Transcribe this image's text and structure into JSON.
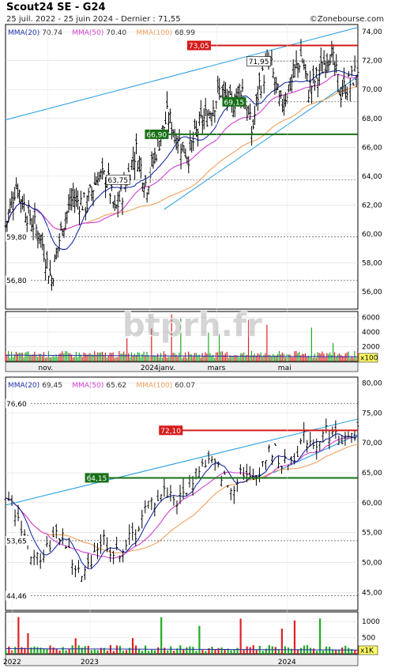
{
  "header": {
    "title": "Scout24 SE - G24",
    "subtitle": "25 juil. 2022 - 25 juin 2024 - Dernier : 71,55",
    "source": "©Zonebourse.com"
  },
  "watermark": "btprh.fr",
  "colors": {
    "mma20": "#1b2fa8",
    "mma50": "#d23fd2",
    "mma100": "#f0a05a",
    "trend": "#1e9be0",
    "resistance": "#d61b1b",
    "support": "#177017",
    "up_volume": "#22aa22",
    "down_volume": "#dd2222"
  },
  "chart_data": [
    {
      "id": "top",
      "type": "line",
      "description_period": "daily, last ~12 months",
      "legend": [
        {
          "label": "MMA(20)",
          "value": "70.74",
          "color": "#1b2fa8"
        },
        {
          "label": "MMA(50)",
          "value": "70.40",
          "color": "#d23fd2"
        },
        {
          "label": "MMA(100)",
          "value": "68.99",
          "color": "#f0a05a"
        }
      ],
      "ylim": [
        54.8,
        74.5
      ],
      "yticks": [
        "74,00",
        "72,00",
        "70,00",
        "68,00",
        "66,00",
        "64,00",
        "62,00",
        "60,00",
        "58,00",
        "56,00"
      ],
      "ytick_values": [
        74,
        72,
        70,
        68,
        66,
        64,
        62,
        60,
        58,
        56
      ],
      "xticks": [
        "nov.",
        "2024janv.",
        "mars",
        "mai"
      ],
      "xtick_positions": [
        0.12,
        0.41,
        0.6,
        0.8
      ],
      "levels": [
        {
          "label": "73,05",
          "value": 73.05,
          "kind": "resistance",
          "labelpos": 0.52
        },
        {
          "label": "71,95",
          "value": 71.95,
          "kind": "note",
          "labelpos": 0.69
        },
        {
          "label": "69,15",
          "value": 69.15,
          "kind": "support-label",
          "labelpos": 0.62
        },
        {
          "label": "66,90",
          "value": 66.9,
          "kind": "support",
          "labelpos": 0.4
        },
        {
          "label": "63,75",
          "value": 63.75,
          "kind": "note",
          "labelpos": 0.29
        },
        {
          "label": "59,80",
          "value": 59.8,
          "kind": "left",
          "labelpos": 0
        },
        {
          "label": "56,80",
          "value": 56.8,
          "kind": "left",
          "labelpos": 0
        }
      ],
      "close_points": [
        [
          0,
          60.5
        ],
        [
          0.03,
          63.5
        ],
        [
          0.06,
          61.5
        ],
        [
          0.1,
          59.8
        ],
        [
          0.13,
          56.8
        ],
        [
          0.16,
          60.5
        ],
        [
          0.19,
          62.5
        ],
        [
          0.23,
          62.0
        ],
        [
          0.26,
          64.0
        ],
        [
          0.29,
          63.8
        ],
        [
          0.31,
          61.5
        ],
        [
          0.34,
          63.5
        ],
        [
          0.37,
          65.8
        ],
        [
          0.4,
          63.3
        ],
        [
          0.43,
          66.0
        ],
        [
          0.46,
          68.2
        ],
        [
          0.49,
          66.5
        ],
        [
          0.52,
          65.5
        ],
        [
          0.55,
          67.5
        ],
        [
          0.58,
          68.5
        ],
        [
          0.61,
          70.0
        ],
        [
          0.64,
          68.8
        ],
        [
          0.67,
          70.3
        ],
        [
          0.7,
          67.0
        ],
        [
          0.72,
          70.3
        ],
        [
          0.75,
          72.0
        ],
        [
          0.78,
          68.8
        ],
        [
          0.81,
          70.5
        ],
        [
          0.84,
          72.4
        ],
        [
          0.86,
          70.0
        ],
        [
          0.89,
          71.0
        ],
        [
          0.92,
          72.8
        ],
        [
          0.95,
          69.8
        ],
        [
          0.98,
          70.5
        ],
        [
          1.0,
          71.55
        ]
      ],
      "volume": {
        "yticks": [
          "6000",
          "4000",
          "2000"
        ],
        "ytick_values": [
          6000,
          4000,
          2000
        ],
        "ylim": [
          0,
          6800
        ],
        "unit": "x100"
      }
    },
    {
      "id": "bottom",
      "type": "line",
      "description_period": "weekly, ~2 years",
      "legend": [
        {
          "label": "MMA(20)",
          "value": "69,45",
          "color": "#1b2fa8"
        },
        {
          "label": "MMA(50)",
          "value": "65.62",
          "color": "#d23fd2"
        },
        {
          "label": "MMA(100)",
          "value": "60.07",
          "color": "#f0a05a"
        }
      ],
      "ylim": [
        42.0,
        81.0
      ],
      "yticks": [
        "80,00",
        "75,00",
        "70,00",
        "65,00",
        "60,00",
        "55,00",
        "50,00",
        "45,00"
      ],
      "ytick_values": [
        80,
        75,
        70,
        65,
        60,
        55,
        50,
        45
      ],
      "xticks": [
        "2022",
        "2023",
        "2024"
      ],
      "xtick_positions": [
        0.02,
        0.24,
        0.8
      ],
      "levels": [
        {
          "label": "76,60",
          "value": 76.6,
          "kind": "left",
          "labelpos": 0
        },
        {
          "label": "72,10",
          "value": 72.1,
          "kind": "resistance",
          "labelpos": 0.44
        },
        {
          "label": "64,15",
          "value": 64.15,
          "kind": "support",
          "labelpos": 0.23
        },
        {
          "label": "53,65",
          "value": 53.65,
          "kind": "left",
          "labelpos": 0
        },
        {
          "label": "44,46",
          "value": 44.46,
          "kind": "left",
          "labelpos": 0
        }
      ],
      "close_points": [
        [
          0,
          60
        ],
        [
          0.04,
          57
        ],
        [
          0.08,
          50
        ],
        [
          0.12,
          53
        ],
        [
          0.16,
          55
        ],
        [
          0.19,
          50
        ],
        [
          0.22,
          47
        ],
        [
          0.25,
          52
        ],
        [
          0.28,
          54
        ],
        [
          0.31,
          51
        ],
        [
          0.34,
          53
        ],
        [
          0.37,
          55
        ],
        [
          0.4,
          59
        ],
        [
          0.43,
          61
        ],
        [
          0.46,
          62
        ],
        [
          0.49,
          60
        ],
        [
          0.52,
          63
        ],
        [
          0.55,
          66
        ],
        [
          0.58,
          67
        ],
        [
          0.61,
          65
        ],
        [
          0.64,
          62
        ],
        [
          0.67,
          66
        ],
        [
          0.7,
          63
        ],
        [
          0.73,
          67
        ],
        [
          0.76,
          69
        ],
        [
          0.79,
          66
        ],
        [
          0.82,
          68
        ],
        [
          0.85,
          71
        ],
        [
          0.88,
          70
        ],
        [
          0.91,
          72
        ],
        [
          0.94,
          71
        ],
        [
          0.97,
          70.5
        ],
        [
          1.0,
          71.55
        ]
      ],
      "volume": {
        "yticks": [
          "1000",
          "500"
        ],
        "ytick_values": [
          1000,
          500
        ],
        "ylim": [
          0,
          1300
        ],
        "unit": "x1K"
      }
    }
  ]
}
